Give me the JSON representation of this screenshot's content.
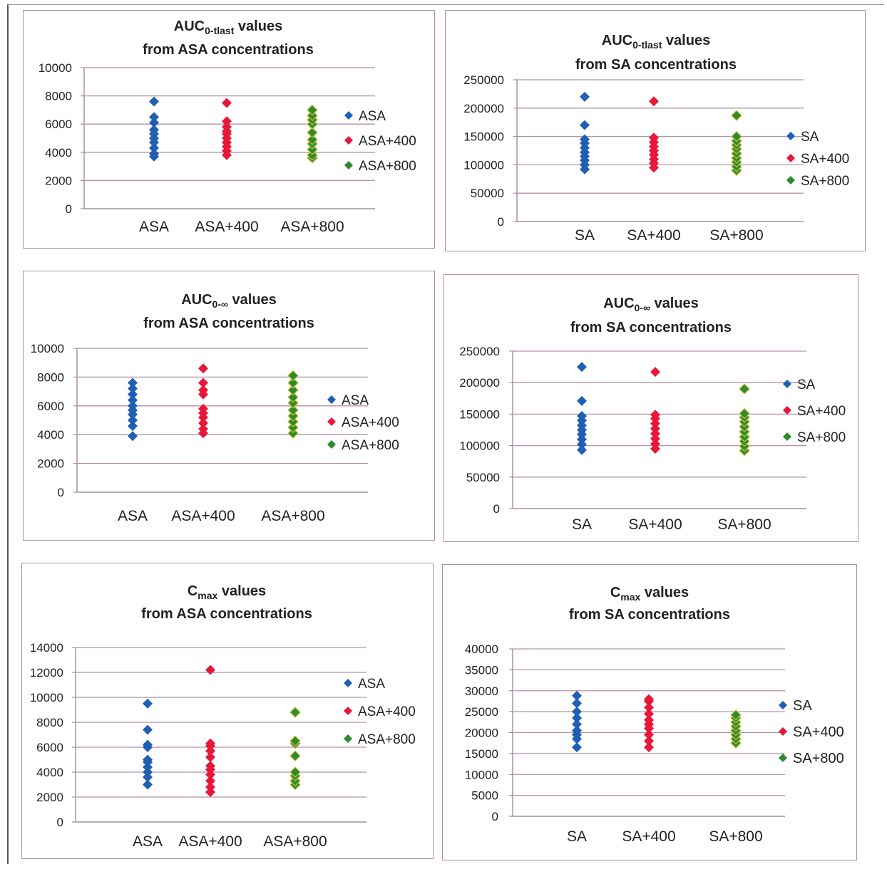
{
  "chart_data": [
    {
      "type": "scatter",
      "title_main": "AUC",
      "title_sub": "0-tlast",
      "title_rest": " values",
      "title_line2": "from ASA concentrations",
      "categories": [
        "ASA",
        "ASA+400",
        "ASA+800"
      ],
      "ylim": [
        0,
        10000
      ],
      "yticks": [
        "0",
        "2000",
        "4000",
        "6000",
        "8000",
        "10000"
      ],
      "grid": true,
      "legend_position": "right",
      "series": [
        {
          "name": "ASA",
          "color": "#1f5fb4",
          "values": [
            3700,
            3900,
            4300,
            4700,
            5000,
            5300,
            5600,
            6100,
            6500,
            7600
          ]
        },
        {
          "name": "ASA+400",
          "color": "#e8173a",
          "values": [
            3800,
            4100,
            4400,
            4700,
            5000,
            5300,
            5500,
            5800,
            6200,
            7500
          ]
        },
        {
          "name": "ASA+800",
          "color": "#2e8b2e",
          "values": [
            3600,
            3800,
            4200,
            4600,
            4900,
            5400,
            6000,
            6300,
            6600,
            7000
          ]
        }
      ]
    },
    {
      "type": "scatter",
      "title_main": "AUC",
      "title_sub": "0-tlast",
      "title_rest": " values",
      "title_line2": "from SA concentrations",
      "categories": [
        "SA",
        "SA+400",
        "SA+800"
      ],
      "ylim": [
        0,
        250000
      ],
      "yticks": [
        "0",
        "50000",
        "100000",
        "150000",
        "200000",
        "250000"
      ],
      "grid": true,
      "legend_position": "right",
      "series": [
        {
          "name": "SA",
          "color": "#1f5fb4",
          "values": [
            92000,
            100000,
            108000,
            115000,
            122000,
            130000,
            138000,
            145000,
            170000,
            220000
          ]
        },
        {
          "name": "SA+400",
          "color": "#e8173a",
          "values": [
            95000,
            103000,
            110000,
            118000,
            125000,
            132000,
            140000,
            148000,
            212000
          ]
        },
        {
          "name": "SA+800",
          "color": "#2e8b2e",
          "values": [
            90000,
            97000,
            105000,
            112000,
            120000,
            128000,
            135000,
            142000,
            150000,
            187000
          ]
        }
      ]
    },
    {
      "type": "scatter",
      "title_main": "AUC",
      "title_sub": "0-∞",
      "title_rest": " values",
      "title_line2": "from ASA concentrations",
      "categories": [
        "ASA",
        "ASA+400",
        "ASA+800"
      ],
      "ylim": [
        0,
        10000
      ],
      "yticks": [
        "0",
        "2000",
        "4000",
        "6000",
        "8000",
        "10000"
      ],
      "grid": true,
      "legend_position": "right",
      "series": [
        {
          "name": "ASA",
          "color": "#1f5fb4",
          "values": [
            3900,
            4600,
            5000,
            5400,
            5700,
            6000,
            6400,
            6800,
            7200,
            7600
          ]
        },
        {
          "name": "ASA+400",
          "color": "#e8173a",
          "values": [
            4100,
            4400,
            4800,
            5200,
            5500,
            5800,
            6800,
            7100,
            7600,
            8600
          ]
        },
        {
          "name": "ASA+800",
          "color": "#2e8b2e",
          "values": [
            4100,
            4500,
            4900,
            5300,
            5700,
            6200,
            6600,
            7100,
            7600,
            8100
          ]
        }
      ]
    },
    {
      "type": "scatter",
      "title_main": "AUC",
      "title_sub": "0-∞",
      "title_rest": " values",
      "title_line2": "from SA concentrations",
      "categories": [
        "SA",
        "SA+400",
        "SA+800"
      ],
      "ylim": [
        0,
        250000
      ],
      "yticks": [
        "0",
        "50000",
        "100000",
        "150000",
        "200000",
        "250000"
      ],
      "grid": true,
      "legend_position": "right",
      "series": [
        {
          "name": "SA",
          "color": "#1f5fb4",
          "values": [
            93000,
            102000,
            110000,
            118000,
            125000,
            132000,
            140000,
            147000,
            171000,
            225000
          ]
        },
        {
          "name": "SA+400",
          "color": "#e8173a",
          "values": [
            95000,
            103000,
            111000,
            119000,
            127000,
            135000,
            143000,
            149000,
            217000
          ]
        },
        {
          "name": "SA+800",
          "color": "#2e8b2e",
          "values": [
            92000,
            99000,
            107000,
            114000,
            122000,
            130000,
            138000,
            145000,
            151000,
            190000
          ]
        }
      ]
    },
    {
      "type": "scatter",
      "title_main": "C",
      "title_sub": "max",
      "title_rest": " values",
      "title_line2": "from ASA concentrations",
      "categories": [
        "ASA",
        "ASA+400",
        "ASA+800"
      ],
      "ylim": [
        0,
        14000
      ],
      "yticks": [
        "0",
        "2000",
        "4000",
        "6000",
        "8000",
        "10000",
        "12000",
        "14000"
      ],
      "grid": true,
      "legend_position": "right",
      "series": [
        {
          "name": "ASA",
          "color": "#1f5fb4",
          "values": [
            3000,
            3600,
            4000,
            4400,
            4800,
            5000,
            6000,
            6200,
            7400,
            9500
          ]
        },
        {
          "name": "ASA+400",
          "color": "#e8173a",
          "values": [
            2400,
            2800,
            3300,
            3800,
            4200,
            4500,
            5200,
            5700,
            6100,
            6300,
            12200
          ]
        },
        {
          "name": "ASA+800",
          "color": "#2e8b2e",
          "values": [
            3000,
            3300,
            3700,
            4000,
            5300,
            6300,
            6500,
            8800
          ]
        }
      ]
    },
    {
      "type": "scatter",
      "title_main": "C",
      "title_sub": "max",
      "title_rest": " values",
      "title_line2": "from SA concentrations",
      "categories": [
        "SA",
        "SA+400",
        "SA+800"
      ],
      "ylim": [
        0,
        40000
      ],
      "yticks": [
        "0",
        "5000",
        "10000",
        "15000",
        "20000",
        "25000",
        "30000",
        "35000",
        "40000"
      ],
      "grid": true,
      "legend_position": "right",
      "series": [
        {
          "name": "SA",
          "color": "#1f5fb4",
          "values": [
            16500,
            18500,
            19500,
            20500,
            22000,
            23500,
            25000,
            27000,
            28800
          ]
        },
        {
          "name": "SA+400",
          "color": "#e8173a",
          "values": [
            16500,
            18000,
            19500,
            21000,
            22000,
            23000,
            24500,
            26000,
            27500,
            28000
          ]
        },
        {
          "name": "SA+800",
          "color": "#2e8b2e",
          "values": [
            17500,
            18500,
            19500,
            20500,
            21500,
            22500,
            23500,
            24200
          ]
        }
      ]
    }
  ]
}
